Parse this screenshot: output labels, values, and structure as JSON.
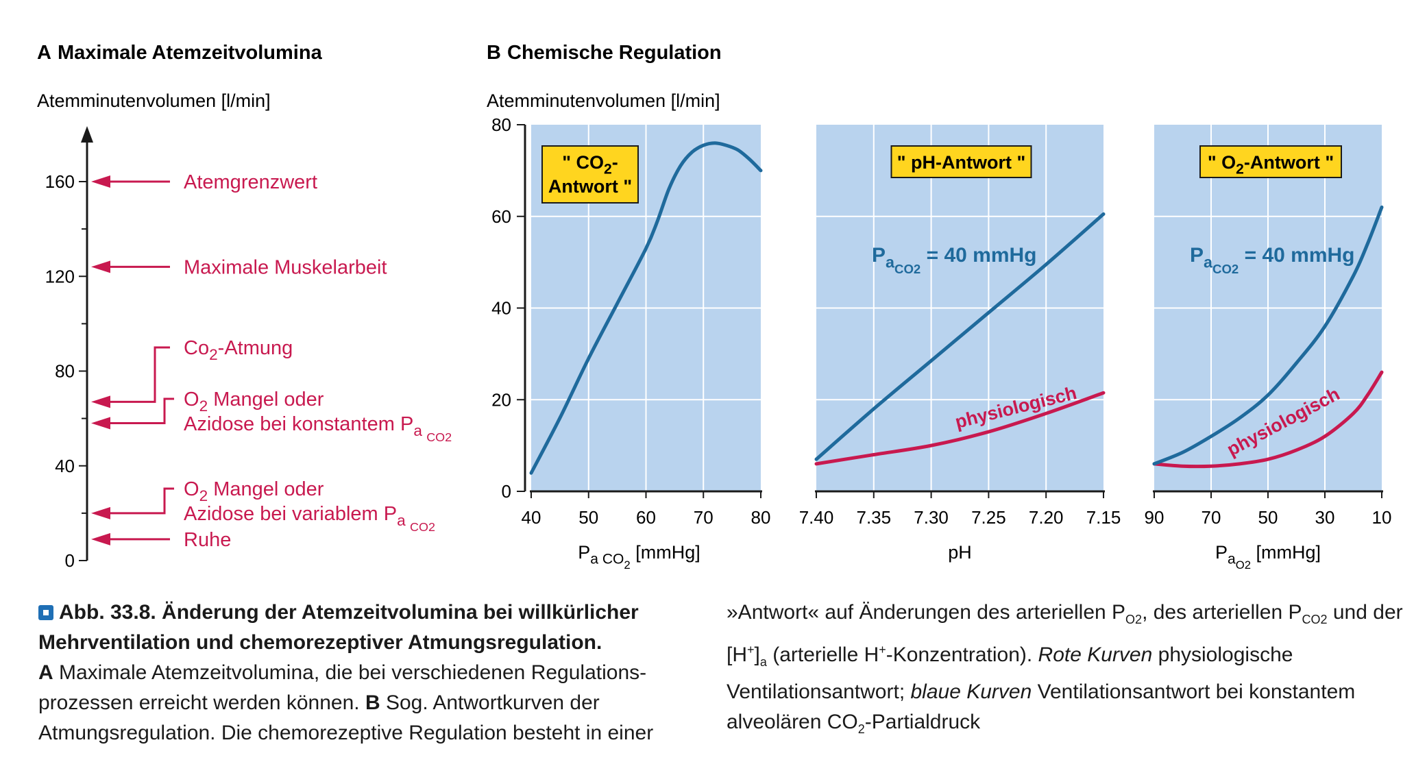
{
  "panel_a": {
    "heading_letter": "A",
    "heading": "Maximale Atemzeitvolumina",
    "ylabel": "Atemminutenvolumen [l/min]",
    "ticks": [
      "0",
      "40",
      "80",
      "120",
      "160"
    ],
    "levels": [
      {
        "label": "Atemgrenzwert",
        "value": 160
      },
      {
        "label": "Maximale Muskelarbeit",
        "value": 124
      },
      {
        "label": "Co",
        "label_sub": "2",
        "label_rest": "-Atmung",
        "value": 67
      },
      {
        "label": "O",
        "label_sub": "2",
        "label_rest": " Mangel oder",
        "line2": "Azidose bei konstantem P",
        "line2_sub": "a",
        "line2_subsub": "CO",
        "line2_subsubsub": "2",
        "value": 58
      },
      {
        "label": "O",
        "label_sub": "2",
        "label_rest": " Mangel oder",
        "line2": "Azidose bei variablem P",
        "line2_sub": "a",
        "line2_subsub": "CO",
        "line2_subsubsub": "2",
        "value": 20
      },
      {
        "label": "Ruhe",
        "value": 9
      }
    ],
    "ylim": [
      0,
      180
    ]
  },
  "panel_b": {
    "heading_letter": "B",
    "heading": "Chemische Regulation",
    "ylabel": "Atemminutenvolumen [l/min]"
  },
  "chart_data": [
    {
      "type": "line",
      "title": "\" CO2-Antwort \"",
      "title_main": "\" CO",
      "title_sub": "2",
      "title_rest": "-",
      "title_line2": "Antwort \"",
      "xlabel": "P",
      "xlabel_sub": "a CO",
      "xlabel_subsub": "2",
      "xlabel_rest": " [mmHg]",
      "ylabel": "Atemminutenvolumen [l/min]",
      "xlim": [
        40,
        80
      ],
      "ylim": [
        0,
        80
      ],
      "x_ticks": [
        "40",
        "50",
        "60",
        "70",
        "80"
      ],
      "y_ticks": [
        "0",
        "20",
        "40",
        "60",
        "80"
      ],
      "series": [
        {
          "color": "#1f6a9c",
          "x": [
            40,
            45,
            50,
            55,
            60,
            62,
            64,
            66,
            68,
            70,
            72,
            74,
            76,
            78,
            80
          ],
          "y": [
            4,
            16,
            29,
            41,
            53,
            59,
            66,
            71,
            74,
            75.5,
            76,
            75.5,
            74.5,
            72.5,
            70
          ]
        }
      ]
    },
    {
      "type": "line",
      "title": "\" pH-Antwort \"",
      "xlabel": "pH",
      "xlim": [
        7.4,
        7.15
      ],
      "ylim": [
        0,
        80
      ],
      "x_ticks": [
        "7.40",
        "7.35",
        "7.30",
        "7.25",
        "7.20",
        "7.15"
      ],
      "annotation": "P",
      "annotation_sub": "a",
      "annotation_subsub": "CO",
      "annotation_subsubsub": "2",
      "annotation_rest": " = 40 mmHg",
      "series": [
        {
          "name": "physiologisch",
          "color": "#c8194f",
          "x": [
            7.4,
            7.35,
            7.3,
            7.25,
            7.2,
            7.15
          ],
          "y": [
            6,
            8,
            10,
            13,
            17,
            21.5
          ]
        },
        {
          "color": "#1f6a9c",
          "x": [
            7.4,
            7.35,
            7.3,
            7.25,
            7.2,
            7.15
          ],
          "y": [
            7,
            18,
            28.5,
            39,
            49.5,
            60.5
          ]
        }
      ]
    },
    {
      "type": "line",
      "title": "\" O2-Antwort \"",
      "title_main": "\" O",
      "title_sub": "2",
      "title_rest": "-Antwort \"",
      "xlabel": "P",
      "xlabel_sub": "a",
      "xlabel_subsub": "O",
      "xlabel_subsubsub": "2",
      "xlabel_rest": " [mmHg]",
      "xlim": [
        90,
        10
      ],
      "ylim": [
        0,
        80
      ],
      "x_ticks": [
        "90",
        "70",
        "50",
        "30",
        "10"
      ],
      "annotation": "P",
      "annotation_sub": "a",
      "annotation_subsub": "CO",
      "annotation_subsubsub": "2",
      "annotation_rest": " = 40 mmHg",
      "series": [
        {
          "name": "physiologisch",
          "color": "#c8194f",
          "x": [
            90,
            80,
            70,
            60,
            50,
            40,
            30,
            20,
            15,
            10
          ],
          "y": [
            6,
            5.5,
            5.5,
            6,
            7,
            9,
            12,
            17,
            21,
            26
          ]
        },
        {
          "color": "#1f6a9c",
          "x": [
            90,
            80,
            70,
            60,
            50,
            40,
            30,
            20,
            15,
            10
          ],
          "y": [
            6,
            8.5,
            12,
            16,
            21,
            28,
            36,
            47,
            54,
            62
          ]
        }
      ]
    }
  ],
  "caption": {
    "title_bold": "Abb. 33.8.  Änderung der Atemzeitvolumina bei willkürlicher Mehrventilation und chemorezeptiver Atmungsregulation.",
    "a_letter": "A",
    "a_text": " Maximale Atemzeitvolumina, die bei verschiedenen Regulations­prozessen erreicht werden können. ",
    "b_letter": "B",
    "b_text": " Sog. Antwortkurven der Atmungsregulation. Die chemorezeptive Regulation besteht in einer",
    "right_1": "»Antwort« auf Änderungen des arteriellen P",
    "right_1_sub": "O2",
    "right_2": ", des arteriellen P",
    "right_2_sub": "CO2",
    "right_3": " und der [H",
    "right_3_sup": "+",
    "right_4": "]",
    "right_4_sub": "a",
    "right_5": " (arterielle H",
    "right_5_sup": "+",
    "right_6": "-Konzentration). ",
    "right_red_italic": "Rote Kurven",
    "right_7": " physiologische Ventilationsantwort; ",
    "right_blue_italic": "blaue Kurven",
    "right_8": " Ventilationsantwort bei konstantem alveolären CO",
    "right_8_sub": "2",
    "right_9": "-Partialdruck"
  },
  "colors": {
    "panel_bg": "#b9d3ee",
    "blue_curve": "#1f6a9c",
    "red_curve": "#c8194f",
    "label_box": "#ffd51f",
    "arrow": "#c8194f",
    "badge": "#1f6fb5"
  }
}
